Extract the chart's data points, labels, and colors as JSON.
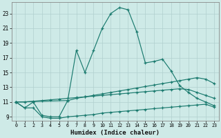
{
  "xlabel": "Humidex (Indice chaleur)",
  "background_color": "#ceeae7",
  "line_color": "#1a7a6e",
  "grid_color": "#b0d0ce",
  "xlim": [
    -0.5,
    23.5
  ],
  "ylim": [
    8.5,
    24.5
  ],
  "xticks": [
    0,
    1,
    2,
    3,
    4,
    5,
    6,
    7,
    8,
    9,
    10,
    11,
    12,
    13,
    14,
    15,
    16,
    17,
    18,
    19,
    20,
    21,
    22,
    23
  ],
  "yticks": [
    9,
    11,
    13,
    15,
    17,
    19,
    21,
    23
  ],
  "series1_x": [
    0,
    1,
    2,
    3,
    4,
    5,
    6,
    7,
    8,
    9,
    10,
    11,
    12,
    13,
    14,
    15,
    16,
    17,
    18,
    19,
    20,
    21,
    22,
    23
  ],
  "series1_y": [
    11.0,
    10.2,
    11.0,
    9.2,
    9.0,
    9.0,
    11.2,
    18.0,
    15.0,
    18.0,
    21.0,
    23.0,
    23.8,
    23.5,
    20.5,
    16.3,
    16.5,
    16.8,
    15.2,
    13.2,
    12.3,
    11.5,
    11.0,
    10.5
  ],
  "series2_x": [
    0,
    6,
    7,
    8,
    9,
    10,
    11,
    12,
    13,
    14,
    15,
    16,
    17,
    18,
    19,
    20,
    21,
    22,
    23
  ],
  "series2_y": [
    11.0,
    11.2,
    11.5,
    11.7,
    11.9,
    12.1,
    12.3,
    12.5,
    12.7,
    12.9,
    13.1,
    13.3,
    13.5,
    13.7,
    13.9,
    14.1,
    14.3,
    14.1,
    13.5
  ],
  "series3_x": [
    0,
    1,
    2,
    3,
    4,
    5,
    6,
    7,
    8,
    9,
    10,
    11,
    12,
    13,
    14,
    15,
    16,
    17,
    18,
    19,
    20,
    21,
    22,
    23
  ],
  "series3_y": [
    11.0,
    11.0,
    11.1,
    11.2,
    11.3,
    11.4,
    11.5,
    11.6,
    11.7,
    11.8,
    11.9,
    12.0,
    12.1,
    12.2,
    12.3,
    12.4,
    12.5,
    12.6,
    12.7,
    12.8,
    12.7,
    12.3,
    11.9,
    11.5
  ],
  "series4_x": [
    0,
    1,
    2,
    3,
    4,
    5,
    6,
    7,
    8,
    9,
    10,
    11,
    12,
    13,
    14,
    15,
    16,
    17,
    18,
    19,
    20,
    21,
    22,
    23
  ],
  "series4_y": [
    11.0,
    10.2,
    10.2,
    9.0,
    8.8,
    8.8,
    9.0,
    9.1,
    9.2,
    9.3,
    9.5,
    9.6,
    9.7,
    9.8,
    9.9,
    10.0,
    10.1,
    10.2,
    10.3,
    10.4,
    10.5,
    10.6,
    10.7,
    10.3
  ]
}
